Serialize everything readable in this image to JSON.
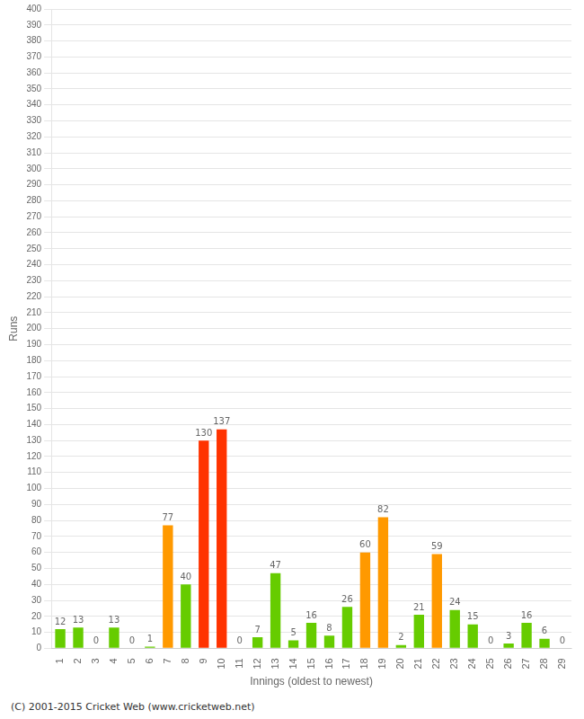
{
  "chart_data": {
    "type": "bar",
    "categories": [
      "1",
      "2",
      "3",
      "4",
      "5",
      "6",
      "7",
      "8",
      "9",
      "10",
      "11",
      "12",
      "13",
      "14",
      "15",
      "16",
      "17",
      "18",
      "19",
      "20",
      "21",
      "22",
      "23",
      "24",
      "25",
      "26",
      "27",
      "28",
      "29"
    ],
    "values": [
      12,
      13,
      0,
      13,
      0,
      1,
      77,
      40,
      130,
      137,
      0,
      7,
      47,
      5,
      16,
      8,
      26,
      60,
      82,
      2,
      21,
      59,
      24,
      15,
      0,
      3,
      16,
      6,
      0
    ],
    "colors": [
      "#66cc00",
      "#66cc00",
      "#66cc00",
      "#66cc00",
      "#66cc00",
      "#66cc00",
      "#ff9900",
      "#66cc00",
      "#ff3300",
      "#ff3300",
      "#66cc00",
      "#66cc00",
      "#66cc00",
      "#66cc00",
      "#66cc00",
      "#66cc00",
      "#66cc00",
      "#ff9900",
      "#ff9900",
      "#66cc00",
      "#66cc00",
      "#ff9900",
      "#66cc00",
      "#66cc00",
      "#66cc00",
      "#66cc00",
      "#66cc00",
      "#66cc00",
      "#66cc00"
    ],
    "xlabel": "Innings (oldest to newest)",
    "ylabel": "Runs",
    "ylim": [
      0,
      400
    ],
    "yticks": [
      0,
      10,
      20,
      30,
      40,
      50,
      60,
      70,
      80,
      90,
      100,
      110,
      120,
      130,
      140,
      150,
      160,
      170,
      180,
      190,
      200,
      210,
      220,
      230,
      240,
      250,
      260,
      270,
      280,
      290,
      300,
      310,
      320,
      330,
      340,
      350,
      360,
      370,
      380,
      390,
      400
    ],
    "grid": true,
    "data_labels": true,
    "footer": "(C) 2001-2015 Cricket Web (www.cricketweb.net)"
  }
}
